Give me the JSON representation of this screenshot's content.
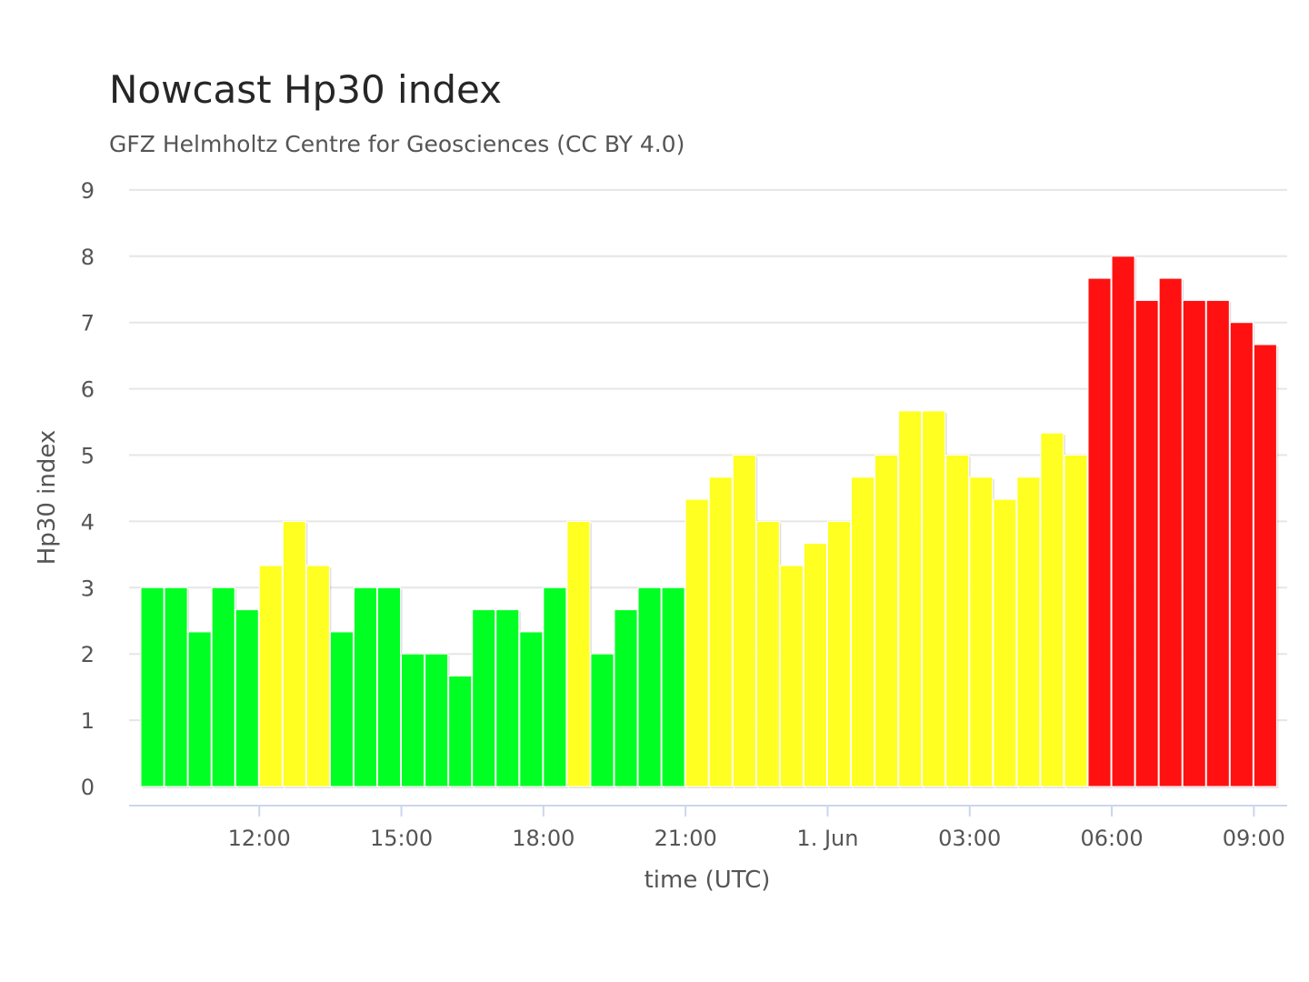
{
  "chart_data": {
    "type": "bar",
    "title": "Nowcast Hp30 index",
    "subtitle": "GFZ Helmholtz Centre for Geosciences (CC BY 4.0)",
    "xlabel": "time (UTC)",
    "ylabel": "Hp30 index",
    "ylim": [
      0,
      9
    ],
    "yticks": [
      "0",
      "1",
      "2",
      "3",
      "4",
      "5",
      "6",
      "7",
      "8",
      "9"
    ],
    "x_start": "2025-05-31T09:30Z",
    "bar_interval_minutes": 30,
    "xtick_labels": [
      "12:00",
      "15:00",
      "18:00",
      "21:00",
      "1. Jun",
      "03:00",
      "06:00",
      "09:00"
    ],
    "grid": true,
    "legend": "none",
    "colors": {
      "green": "#00ff22",
      "yellow": "#ffff22",
      "red": "#ff1111",
      "grid": "#e6e6e6",
      "axis": "#ccd6eb"
    },
    "values": [
      3,
      3,
      2.333,
      3,
      2.667,
      3.333,
      4,
      3.333,
      2.333,
      3,
      3,
      2,
      2,
      1.667,
      2.667,
      2.667,
      2.333,
      3,
      4,
      2,
      2.667,
      3,
      3,
      4.333,
      4.667,
      5,
      4,
      3.333,
      3.667,
      4,
      4.667,
      5,
      5.667,
      5.667,
      5,
      4.667,
      4.333,
      4.667,
      5.333,
      5,
      7.667,
      8,
      7.333,
      7.667,
      7.333,
      7.333,
      7,
      6.667
    ],
    "bar_colors": [
      "green",
      "green",
      "green",
      "green",
      "green",
      "yellow",
      "yellow",
      "yellow",
      "green",
      "green",
      "green",
      "green",
      "green",
      "green",
      "green",
      "green",
      "green",
      "green",
      "yellow",
      "green",
      "green",
      "green",
      "green",
      "yellow",
      "yellow",
      "yellow",
      "yellow",
      "yellow",
      "yellow",
      "yellow",
      "yellow",
      "yellow",
      "yellow",
      "yellow",
      "yellow",
      "yellow",
      "yellow",
      "yellow",
      "yellow",
      "yellow",
      "red",
      "red",
      "red",
      "red",
      "red",
      "red",
      "red",
      "red"
    ]
  }
}
